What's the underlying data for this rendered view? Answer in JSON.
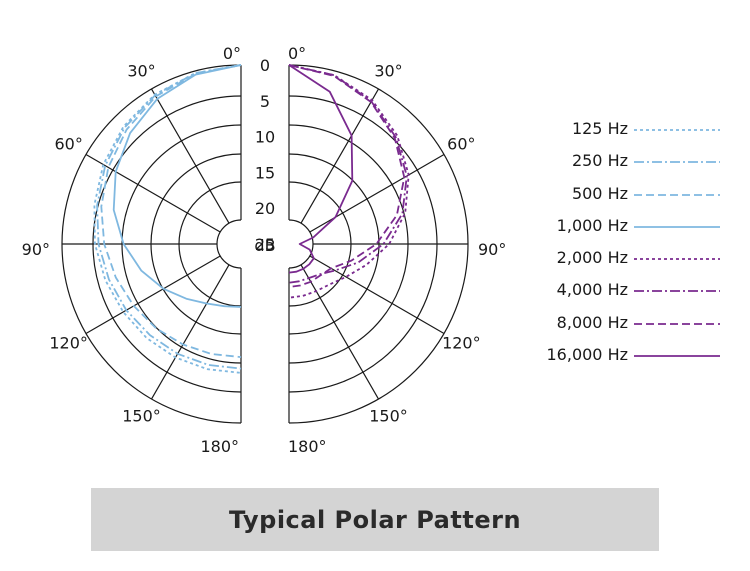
{
  "chart_data": {
    "type": "polar",
    "title": "Typical Polar Pattern",
    "radial_unit": "dB",
    "radial_ticks": [
      "0",
      "5",
      "10",
      "15",
      "20",
      "25"
    ],
    "angle_labels_left": [
      "0°",
      "30°",
      "60°",
      "90°",
      "120°",
      "150°",
      "180°"
    ],
    "angle_labels_right": [
      "0°",
      "30°",
      "60°",
      "90°",
      "120°",
      "150°",
      "180°"
    ],
    "colors": {
      "light": "#7fb8e0",
      "dark": "#7a2a8f"
    },
    "angles_deg": [
      0,
      15,
      30,
      45,
      60,
      75,
      90,
      105,
      120,
      135,
      150,
      165,
      180
    ],
    "series": [
      {
        "name": "125 Hz",
        "side": "left",
        "color": "light",
        "dash": "3,3",
        "values": [
          0,
          0.3,
          0.9,
          1.8,
          2.8,
          3.8,
          4.6,
          5.4,
          6.0,
          6.4,
          6.7,
          6.9,
          7.0
        ]
      },
      {
        "name": "250 Hz",
        "side": "left",
        "color": "light",
        "dash": "10,3,2,3",
        "values": [
          0,
          0.3,
          1.0,
          2.0,
          3.1,
          4.2,
          5.1,
          5.9,
          6.5,
          7.0,
          7.3,
          7.5,
          7.6
        ]
      },
      {
        "name": "500 Hz",
        "side": "left",
        "color": "light",
        "dash": "8,4",
        "values": [
          0,
          0.4,
          1.2,
          2.4,
          3.6,
          4.8,
          5.9,
          6.9,
          7.7,
          8.3,
          8.8,
          9.1,
          9.2
        ]
      },
      {
        "name": "1,000 Hz",
        "side": "left",
        "color": "light",
        "dash": "",
        "values": [
          0,
          0.5,
          1.6,
          3.1,
          4.8,
          6.6,
          8.6,
          10.6,
          12.5,
          14.2,
          15.4,
          16.0,
          16.2
        ]
      },
      {
        "name": "2,000 Hz",
        "side": "right",
        "color": "dark",
        "dash": "3,3",
        "values": [
          0,
          0.6,
          1.8,
          3.6,
          5.7,
          8.2,
          11.0,
          13.8,
          15.8,
          17.0,
          17.4,
          17.5,
          17.5
        ]
      },
      {
        "name": "4,000 Hz",
        "side": "right",
        "color": "dark",
        "dash": "10,3,2,3",
        "values": [
          0,
          0.6,
          2.0,
          3.9,
          6.0,
          8.6,
          11.8,
          15.0,
          17.6,
          19.0,
          19.5,
          19.6,
          19.6
        ]
      },
      {
        "name": "8,000 Hz",
        "side": "right",
        "color": "dark",
        "dash": "8,4",
        "values": [
          0,
          0.7,
          2.1,
          4.1,
          6.4,
          9.4,
          12.8,
          16.0,
          18.2,
          18.8,
          18.9,
          19.0,
          19.0
        ]
      },
      {
        "name": "16,000 Hz",
        "side": "right",
        "color": "dark",
        "dash": "",
        "values": [
          0,
          3.0,
          7.5,
          12.5,
          17.5,
          21.5,
          23.5,
          22.0,
          21.0,
          21.0,
          21.0,
          21.0,
          21.0
        ]
      }
    ]
  }
}
